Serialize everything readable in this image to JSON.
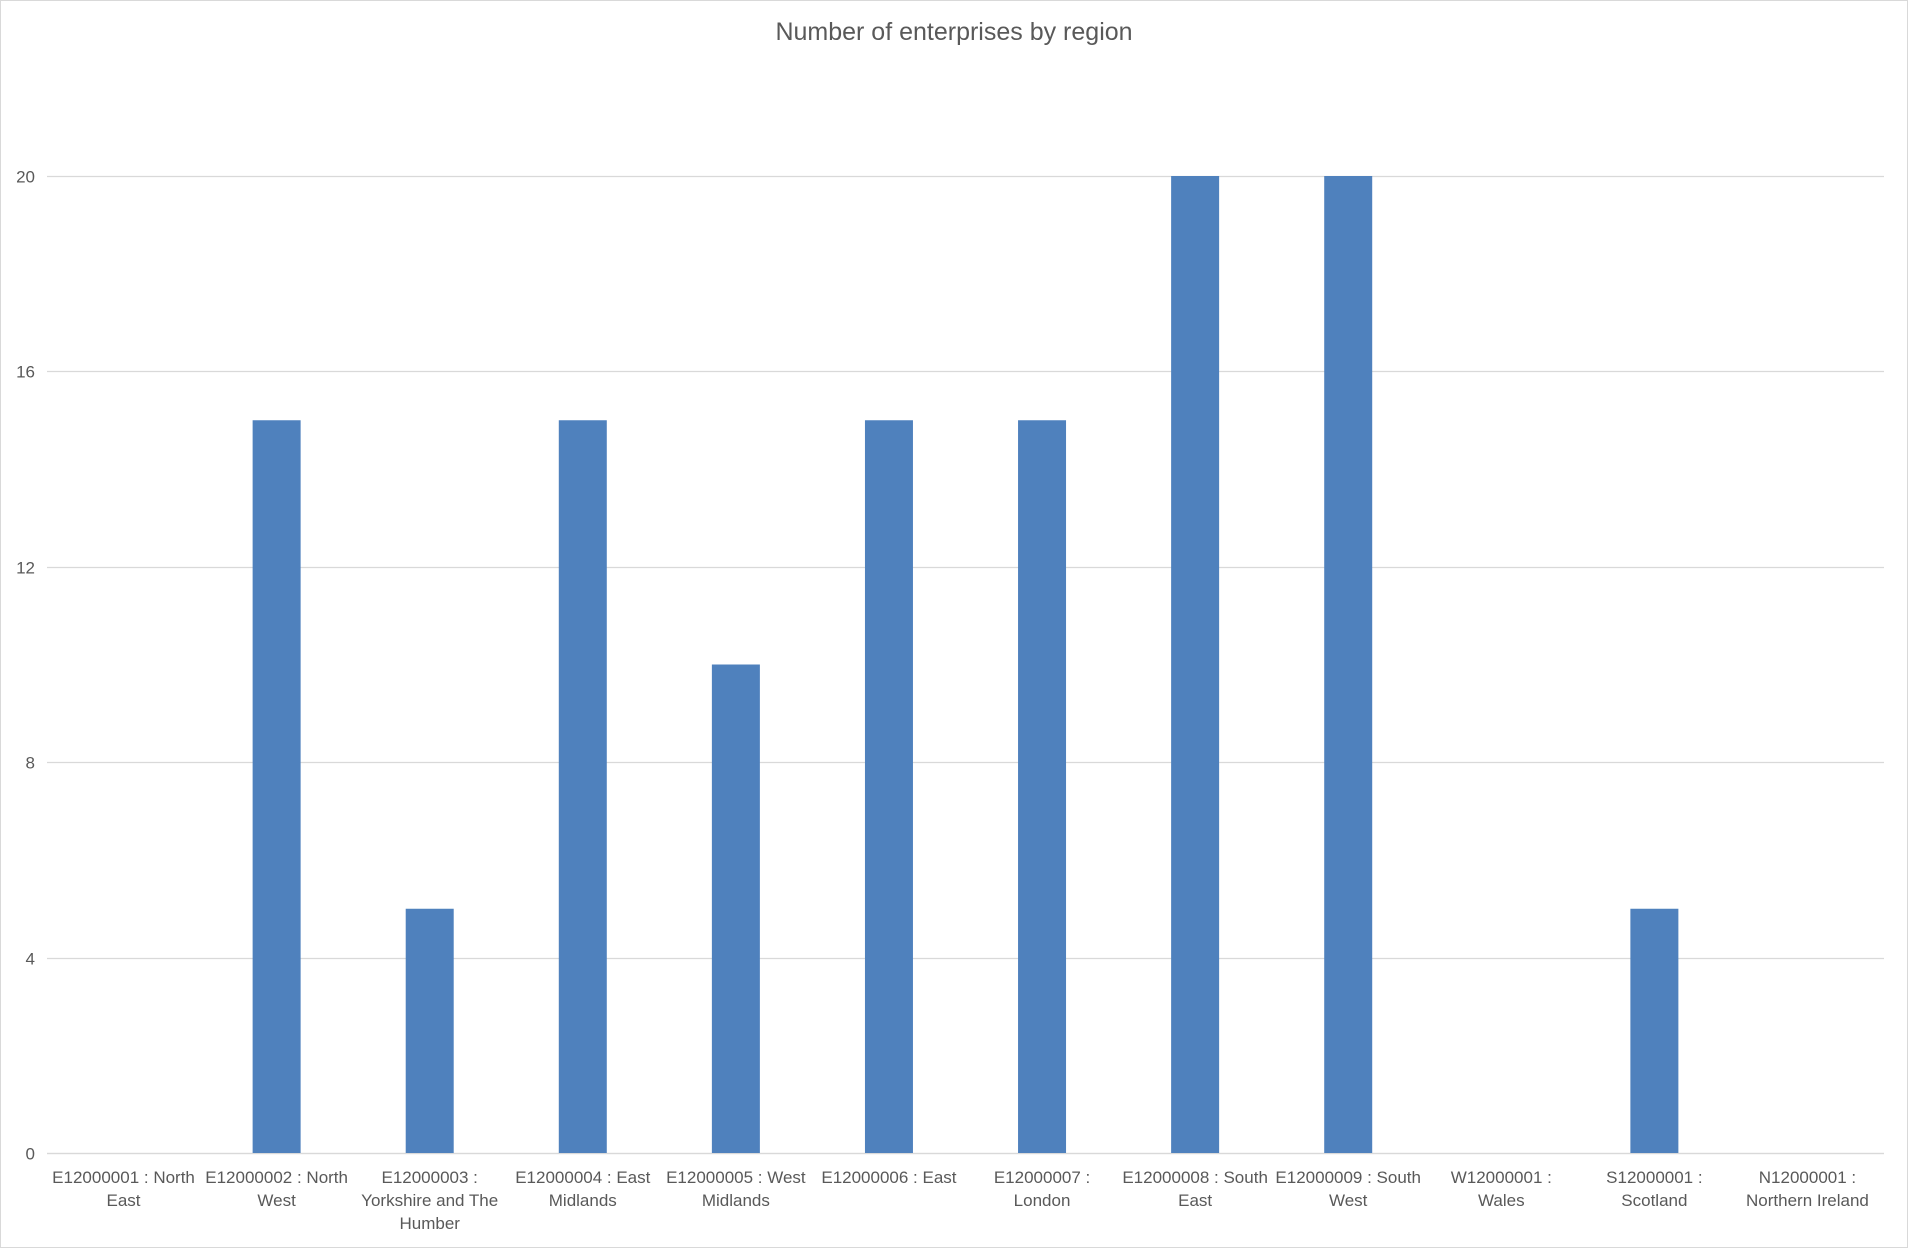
{
  "chart_data": {
    "type": "bar",
    "title": "Number of enterprises by region",
    "xlabel": "",
    "ylabel": "",
    "categories": [
      "E12000001 : North East",
      "E12000002 : North West",
      "E12000003 : Yorkshire and The Humber",
      "E12000004 : East Midlands",
      "E12000005 : West Midlands",
      "E12000006 : East",
      "E12000007 : London",
      "E12000008 : South East",
      "E12000009 : South West",
      "W12000001 : Wales",
      "S12000001 : Scotland",
      "N12000001 : Northern Ireland"
    ],
    "category_label_lines": [
      [
        "E12000001 : North",
        "East"
      ],
      [
        "E12000002 : North",
        "West"
      ],
      [
        "E12000003 :",
        "Yorkshire and The",
        "Humber"
      ],
      [
        "E12000004 : East",
        "Midlands"
      ],
      [
        "E12000005 : West",
        "Midlands"
      ],
      [
        "E12000006 : East"
      ],
      [
        "E12000007 :",
        "London"
      ],
      [
        "E12000008 : South",
        "East"
      ],
      [
        "E12000009 : South",
        "West"
      ],
      [
        "W12000001 :",
        "Wales"
      ],
      [
        "S12000001 :",
        "Scotland"
      ],
      [
        "N12000001 :",
        "Northern Ireland"
      ]
    ],
    "values": [
      0,
      15,
      5,
      15,
      10,
      15,
      15,
      20,
      20,
      0,
      5,
      0
    ],
    "ylim": [
      0,
      20
    ],
    "yticks": [
      0,
      4,
      8,
      12,
      16,
      20
    ],
    "grid": true,
    "legend": "none",
    "bar_color": "#4f81bd",
    "grid_color": "#d9d9d9",
    "text_color": "#595959"
  }
}
